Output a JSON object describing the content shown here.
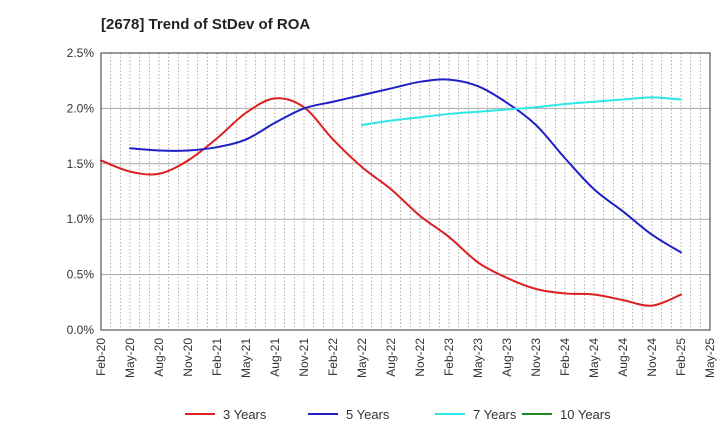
{
  "chart_data": {
    "type": "line",
    "title": "[2678]  Trend of StDev of ROA",
    "xlabel": "",
    "ylabel": "",
    "x_ticks": [
      "Feb-20",
      "May-20",
      "Aug-20",
      "Nov-20",
      "Feb-21",
      "May-21",
      "Aug-21",
      "Nov-21",
      "Feb-22",
      "May-22",
      "Aug-22",
      "Nov-22",
      "Feb-23",
      "May-23",
      "Aug-23",
      "Nov-23",
      "Feb-24",
      "May-24",
      "Aug-24",
      "Nov-24",
      "Feb-25",
      "May-25"
    ],
    "y_ticks": [
      "0.0%",
      "0.5%",
      "1.0%",
      "1.5%",
      "2.0%",
      "2.5%"
    ],
    "ylim": [
      0,
      2.5
    ],
    "y_unit": "%",
    "grid": true,
    "legend_position": "bottom",
    "series": [
      {
        "name": "3 Years",
        "color": "#dd1f1f",
        "values": [
          1.53,
          1.43,
          1.41,
          1.53,
          1.73,
          1.96,
          2.09,
          2.01,
          1.72,
          1.47,
          1.27,
          1.03,
          0.84,
          0.61,
          0.47,
          0.37,
          0.33,
          0.32,
          0.27,
          0.22,
          0.32,
          null
        ]
      },
      {
        "name": "5 Years",
        "color": "#1f1fc8",
        "values": [
          null,
          1.64,
          1.62,
          1.62,
          1.65,
          1.72,
          1.87,
          2.0,
          2.06,
          2.12,
          2.18,
          2.24,
          2.26,
          2.2,
          2.05,
          1.85,
          1.55,
          1.27,
          1.07,
          0.86,
          0.7,
          null
        ]
      },
      {
        "name": "7 Years",
        "color": "#2ee6e6",
        "values": [
          null,
          null,
          null,
          null,
          null,
          null,
          null,
          null,
          null,
          1.85,
          1.89,
          1.92,
          1.95,
          1.97,
          1.99,
          2.01,
          2.04,
          2.06,
          2.08,
          2.1,
          2.08,
          null
        ]
      },
      {
        "name": "10 Years",
        "color": "#1e8c1e",
        "values": []
      }
    ]
  }
}
